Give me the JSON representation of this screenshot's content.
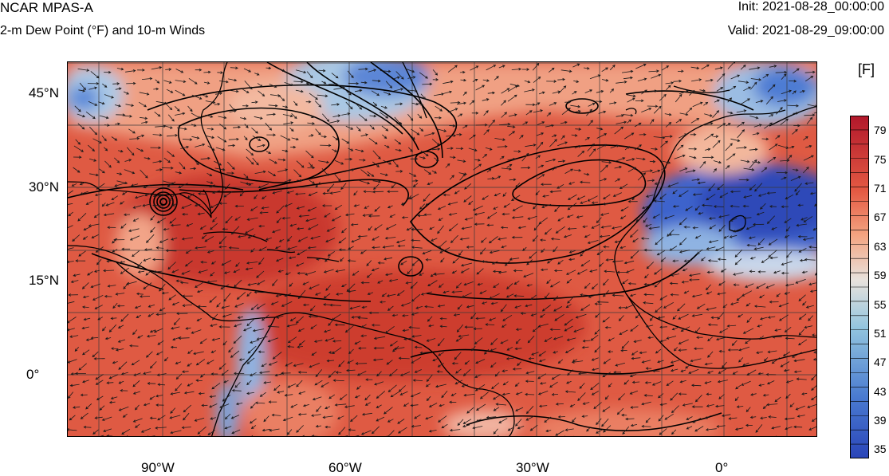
{
  "header": {
    "model_name": "NCAR MPAS-A",
    "field_title": "2-m Dew Point (°F) and 10-m Winds",
    "init_time": "Init: 2021-08-28_00:00:00",
    "valid_time": "Valid: 2021-08-29_09:00:00"
  },
  "axes": {
    "lat_labels": [
      "45°N",
      "30°N",
      "15°N",
      "0°"
    ],
    "lon_labels": [
      "90°W",
      "60°W",
      "30°W",
      "0°"
    ]
  },
  "colorbar": {
    "units": "[F]",
    "ticks": [
      "79",
      "75",
      "71",
      "67",
      "63",
      "59",
      "55",
      "51",
      "47",
      "43",
      "39",
      "35"
    ],
    "colors": {
      "warmest": "#b2182b",
      "warm": "#e45a43",
      "mid_warm": "#f4a582",
      "neutral": "#e8e2dd",
      "mid_cool": "#92c5de",
      "cool": "#4a7bd1",
      "coolest": "#2a45b8"
    }
  },
  "map": {
    "land_outline_color": "#000000",
    "contour_color": "#000000",
    "grid_color": "#3a3a3a",
    "wind_arrow_color": "#1a1a1a"
  }
}
